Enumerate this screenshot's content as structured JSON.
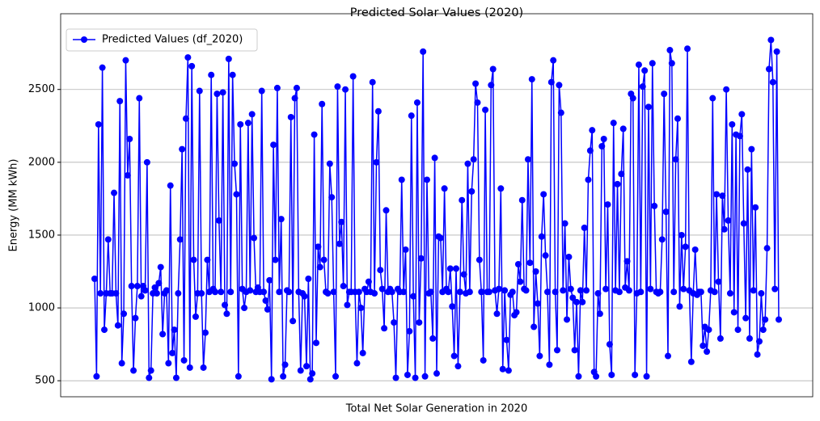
{
  "chart_data": {
    "type": "line",
    "title": "Predicted Solar Values (2020)",
    "xlabel": "Total Net Solar Generation in 2020",
    "ylabel": "Energy (MM kWh)",
    "ylim": [
      390,
      3020
    ],
    "yticks": [
      500,
      1000,
      1500,
      2000,
      2500
    ],
    "grid": "y",
    "legend": "upper left",
    "series": [
      {
        "name": "Predicted Values (df_2020)",
        "color": "#0000ff",
        "values": [
          1200,
          530,
          2260,
          1100,
          2650,
          850,
          1100,
          1470,
          1100,
          1100,
          1790,
          1100,
          880,
          2420,
          620,
          960,
          2700,
          1910,
          2160,
          1150,
          570,
          930,
          1150,
          2440,
          1080,
          1150,
          1120,
          2000,
          520,
          570,
          1100,
          1140,
          1100,
          1170,
          1280,
          820,
          1100,
          1120,
          620,
          1840,
          690,
          850,
          520,
          1100,
          1470,
          2090,
          640,
          2300,
          2720,
          590,
          2660,
          1330,
          940,
          1100,
          2490,
          1100,
          590,
          830,
          1330,
          1110,
          2600,
          1130,
          1110,
          2470,
          1600,
          1110,
          2480,
          1020,
          960,
          2710,
          1110,
          2600,
          1990,
          1780,
          530,
          2260,
          1130,
          1000,
          1110,
          2270,
          1120,
          2330,
          1480,
          1110,
          1140,
          1110,
          2490,
          1110,
          1050,
          990,
          1190,
          510,
          2120,
          1330,
          2510,
          1110,
          1610,
          530,
          610,
          1120,
          1110,
          2310,
          910,
          2440,
          2510,
          1110,
          570,
          1100,
          1080,
          600,
          1200,
          510,
          550,
          2190,
          760,
          1420,
          1280,
          2400,
          1330,
          1110,
          1100,
          1990,
          1760,
          1110,
          530,
          2520,
          1440,
          1590,
          1150,
          2500,
          1020,
          1110,
          1110,
          2590,
          1110,
          620,
          1110,
          1000,
          690,
          1130,
          1110,
          1180,
          1110,
          2550,
          1100,
          2000,
          2350,
          1260,
          1130,
          860,
          1670,
          1110,
          1130,
          1110,
          900,
          520,
          1130,
          1110,
          1880,
          1110,
          1400,
          540,
          840,
          2320,
          1080,
          520,
          2410,
          900,
          1340,
          2760,
          530,
          1880,
          1100,
          1110,
          790,
          2030,
          550,
          1490,
          1480,
          1110,
          1820,
          1130,
          1110,
          1270,
          1010,
          670,
          1270,
          600,
          1110,
          1740,
          1230,
          1100,
          1990,
          1110,
          1800,
          2020,
          2540,
          2410,
          1330,
          1110,
          640,
          2360,
          1110,
          1110,
          2530,
          2640,
          1120,
          960,
          1130,
          1820,
          580,
          1120,
          780,
          570,
          1090,
          1110,
          950,
          970,
          1300,
          1180,
          1740,
          1130,
          1120,
          2020,
          1310,
          2570,
          870,
          1250,
          1030,
          670,
          1490,
          1780,
          1360,
          1110,
          610,
          2550,
          2700,
          1110,
          710,
          2530,
          2340,
          1120,
          1580,
          920,
          1350,
          1130,
          1070,
          710,
          1040,
          530,
          1120,
          1040,
          1550,
          1120,
          1880,
          2080,
          2220,
          560,
          530,
          1100,
          960,
          2110,
          2160,
          1130,
          1710,
          750,
          540,
          2270,
          1120,
          1850,
          1110,
          1920,
          2230,
          1140,
          1320,
          1120,
          2470,
          2440,
          540,
          1100,
          2670,
          1110,
          2520,
          2630,
          530,
          2380,
          1130,
          2680,
          1700,
          1110,
          1100,
          1110,
          1470,
          2470,
          1660,
          670,
          2770,
          2680,
          1110,
          2020,
          2300,
          1010,
          1500,
          1130,
          1420,
          2780,
          1120,
          630,
          1100,
          1400,
          1090,
          1110,
          1110,
          740,
          870,
          700,
          850,
          1120,
          2440,
          1110,
          1780,
          1180,
          790,
          1770,
          1540,
          2500,
          1600,
          1100,
          2260,
          970,
          2190,
          850,
          2180,
          2330,
          1580,
          930,
          1950,
          790,
          2090,
          1120,
          1690,
          680,
          770,
          1100,
          850,
          920,
          1410,
          2640,
          2840,
          2550,
          1130,
          2760,
          920
        ]
      }
    ]
  }
}
